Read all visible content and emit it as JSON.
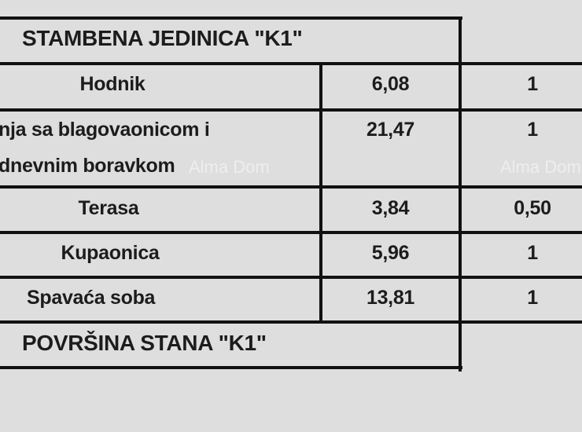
{
  "table": {
    "header": "STAMBENA JEDINICA \"K1\"",
    "rows": [
      {
        "room": "Hodnik",
        "area": "6,08",
        "coef": "1"
      },
      {
        "room_line1": "nja sa blagovaonicom i",
        "room_line2": "dnevnim boravkom",
        "area": "21,47",
        "coef": "1"
      },
      {
        "room": "Terasa",
        "area": "3,84",
        "coef": "0,50"
      },
      {
        "room": "Kupaonica",
        "area": "5,96",
        "coef": "1"
      },
      {
        "room": "Spavaća soba",
        "area": "13,81",
        "coef": "1"
      }
    ],
    "footer": "POVRŠINA STANA \"K1\""
  },
  "watermark": "Alma Dom"
}
